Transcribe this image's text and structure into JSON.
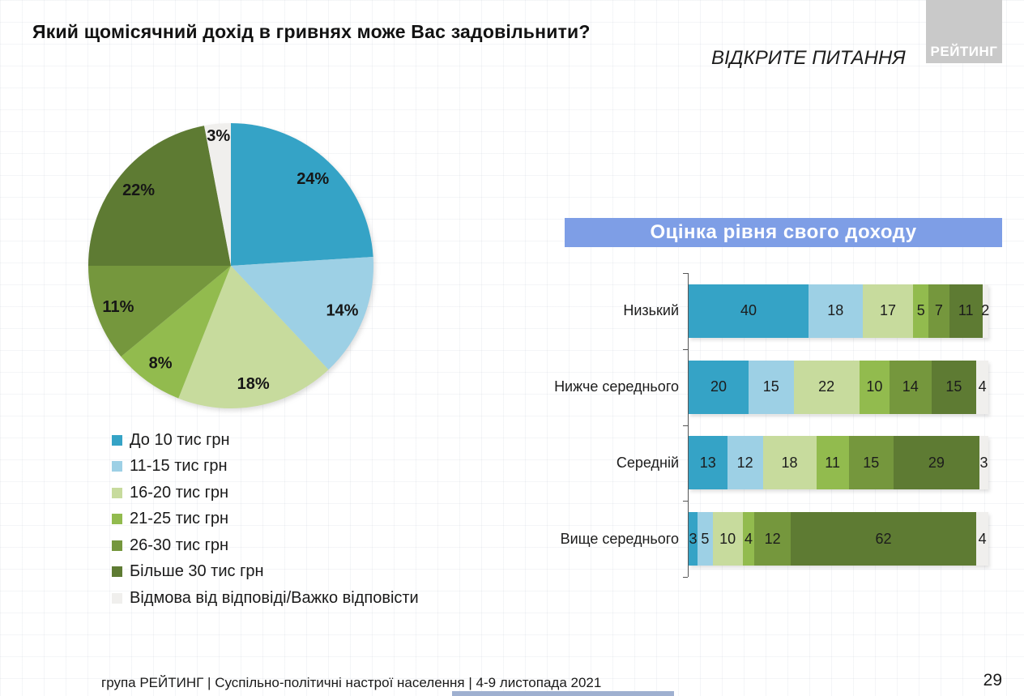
{
  "page": {
    "title": "Який щомісячний дохід в гривнях може Вас задовільнити?",
    "subtitle": "ВІДКРИТЕ ПИТАННЯ",
    "logo": "РЕЙТИНГ",
    "footer": "група РЕЙТИНГ | Суспільно-політичні настрої населення  | 4-9 листопада 2021",
    "page_number": "29"
  },
  "colors": {
    "header_band": "#7e9ee6",
    "logo_bg": "#c9c9c9",
    "axis": "#555555",
    "bottom_accent_bar": "#9fb0d0"
  },
  "chart_data": [
    {
      "type": "pie",
      "title": "Який щомісячний дохід в гривнях може Вас задовільнити?",
      "labels": [
        "До 10 тис грн",
        "11-15 тис грн",
        "16-20 тис грн",
        "21-25 тис грн",
        "26-30 тис грн",
        "Більше 30 тис грн",
        "Відмова від відповіді/Важко відповісти"
      ],
      "values": [
        24,
        14,
        18,
        8,
        11,
        22,
        3
      ],
      "value_suffix": "%",
      "colors": [
        "#35a3c6",
        "#9dd0e5",
        "#c7db9d",
        "#92bb4e",
        "#75973d",
        "#5e7b33",
        "#f0efed"
      ],
      "start_angle": "top",
      "direction": "clockwise",
      "legend_position": "bottom-left"
    },
    {
      "type": "bar",
      "subtype": "horizontal-stacked-100",
      "title": "Оцінка рівня свого доходу",
      "categories": [
        "Низький",
        "Нижче середнього",
        "Середній",
        "Вище середнього"
      ],
      "series": [
        {
          "name": "До 10 тис грн",
          "color": "#35a3c6",
          "values": [
            40,
            20,
            13,
            3
          ]
        },
        {
          "name": "11-15 тис грн",
          "color": "#9dd0e5",
          "values": [
            18,
            15,
            12,
            5
          ]
        },
        {
          "name": "16-20 тис грн",
          "color": "#c7db9d",
          "values": [
            17,
            22,
            18,
            10
          ]
        },
        {
          "name": "21-25 тис грн",
          "color": "#92bb4e",
          "values": [
            5,
            10,
            11,
            4
          ]
        },
        {
          "name": "26-30 тис грн",
          "color": "#75973d",
          "values": [
            7,
            14,
            15,
            12
          ]
        },
        {
          "name": "Більше 30 тис грн",
          "color": "#5e7b33",
          "values": [
            11,
            15,
            29,
            62
          ]
        },
        {
          "name": "Відмова від відповіді/Важко відповісти",
          "color": "#f0efed",
          "values": [
            2,
            4,
            3,
            4
          ]
        }
      ],
      "xlim": [
        0,
        100
      ],
      "data_labels": true,
      "grid": false
    }
  ]
}
